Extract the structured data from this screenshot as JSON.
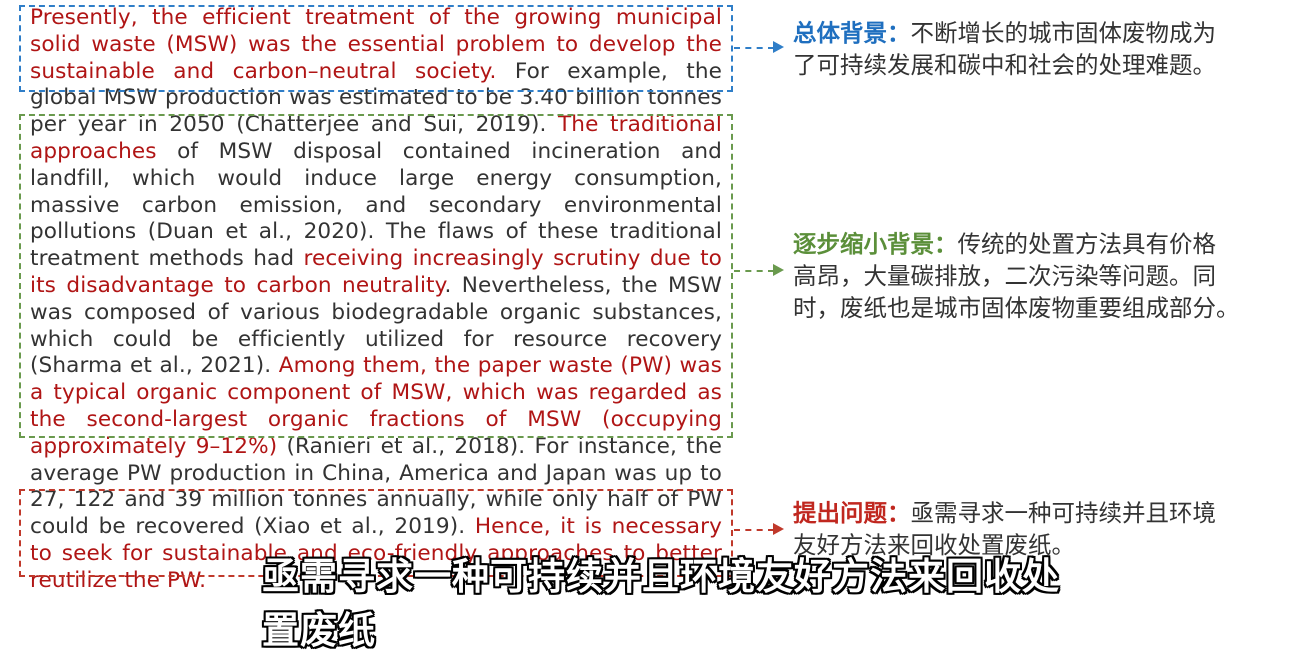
{
  "paragraph": {
    "s1": "Presently, the efficient treatment of the growing municipal solid waste (MSW) was the essential problem to develop the sustainable and carbon–neutral society.",
    "s2": " For example, the global MSW production was estimated to be 3.40 billion tonnes per year in 2050 (Chatterjee and Sui, 2019). ",
    "s3": "The traditional approaches",
    "s4": " of MSW disposal contained incineration and landfill, which would induce large energy consumption, massive carbon emission, and secondary environmental pollutions (Duan et al., 2020). The flaws of these traditional treatment methods had ",
    "s5": "receiving increasingly scrutiny due to its disadvantage to carbon neutrality",
    "s6": ". Nevertheless, the MSW was composed of various biodegradable organic substances, which could be efficiently utilized for resource recovery (Sharma et al., 2021). ",
    "s7": "Among them, the paper waste (PW) was a typical organic component of MSW, which was regarded as the second-largest organic fractions of MSW (occupying approximately 9–12%)",
    "s8": " (Ranieri et al., 2018). For instance, the average PW production in China, America and Japan was up to 27, 122 and 39 million tonnes annually, while only half of PW could be recovered (Xiao et al., 2019). ",
    "s9": "Hence, it is necessary to seek for sustainable and eco-friendly approaches to better reutilize the PW."
  },
  "annotations": {
    "background": {
      "label": "总体背景",
      "sep": "：",
      "text": "不断增长的城市固体废物成为\n了可持续发展和碳中和社会的处理难题。"
    },
    "narrowing": {
      "label": "逐步缩小背景",
      "sep": "：",
      "text": "传统的处置方法具有价格\n高昂，大量碳排放，二次污染等问题。同\n时，废纸也是城市固体废物重要组成部分。"
    },
    "problem": {
      "label": "提出问题",
      "sep": "：",
      "text": "亟需寻求一种可持续并且环境\n友好方法来回收处置废纸。"
    }
  },
  "subtitle": "亟需寻求一种可持续并且环境友好方法来回收处置废纸",
  "colors": {
    "blue": "#2f7ec8",
    "green": "#6a9a4e",
    "red": "#c0392b",
    "highlight": "#b01515"
  }
}
